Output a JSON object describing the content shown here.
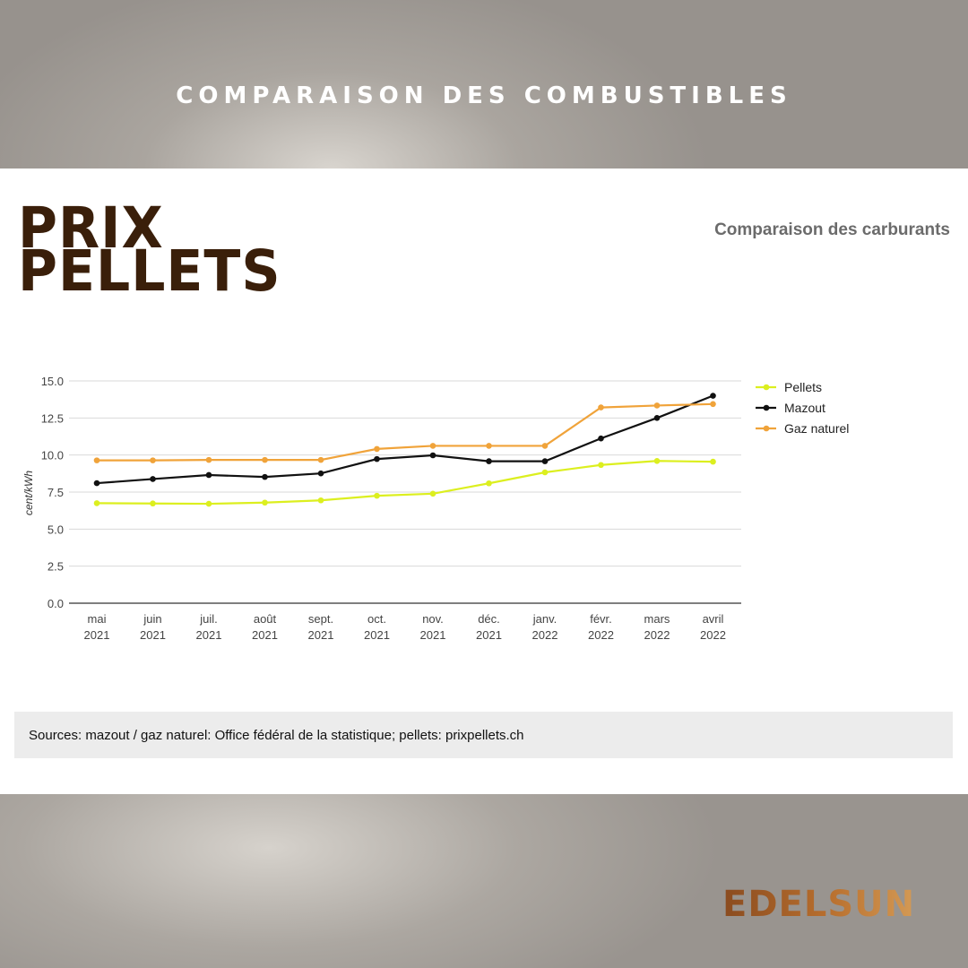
{
  "page_title": "COMPARAISON DES COMBUSTIBLES",
  "logo": {
    "line1": "PRIX",
    "line2": "PELLETS"
  },
  "chart_title": "Comparaison des carburants",
  "sources": "Sources: mazout / gaz naturel: Office fédéral de la statistique; pellets: prixpellets.ch",
  "brand": "EDELSUN",
  "chart_data": {
    "type": "line",
    "ylabel": "cent/kWh",
    "ylim": [
      0,
      15
    ],
    "y_ticks": [
      "0.0",
      "2.5",
      "5.0",
      "7.5",
      "10.0",
      "12.5",
      "15.0"
    ],
    "grid": true,
    "legend_position": "right",
    "categories": [
      [
        "mai",
        "2021"
      ],
      [
        "juin",
        "2021"
      ],
      [
        "juil.",
        "2021"
      ],
      [
        "août",
        "2021"
      ],
      [
        "sept.",
        "2021"
      ],
      [
        "oct.",
        "2021"
      ],
      [
        "nov.",
        "2021"
      ],
      [
        "déc.",
        "2021"
      ],
      [
        "janv.",
        "2022"
      ],
      [
        "févr.",
        "2022"
      ],
      [
        "mars",
        "2022"
      ],
      [
        "avril",
        "2022"
      ]
    ],
    "series": [
      {
        "name": "Pellets",
        "color": "#dcef1f",
        "values": [
          6.75,
          6.73,
          6.71,
          6.79,
          6.94,
          7.25,
          7.39,
          8.09,
          8.83,
          9.33,
          9.6,
          9.55
        ]
      },
      {
        "name": "Mazout",
        "color": "#111111",
        "values": [
          8.1,
          8.38,
          8.65,
          8.52,
          8.76,
          9.73,
          9.98,
          9.58,
          9.58,
          11.12,
          12.5,
          14.0
        ]
      },
      {
        "name": "Gaz naturel",
        "color": "#f0a33a",
        "values": [
          9.64,
          9.64,
          9.67,
          9.67,
          9.67,
          10.41,
          10.62,
          10.62,
          10.62,
          13.21,
          13.34,
          13.44
        ]
      }
    ]
  }
}
